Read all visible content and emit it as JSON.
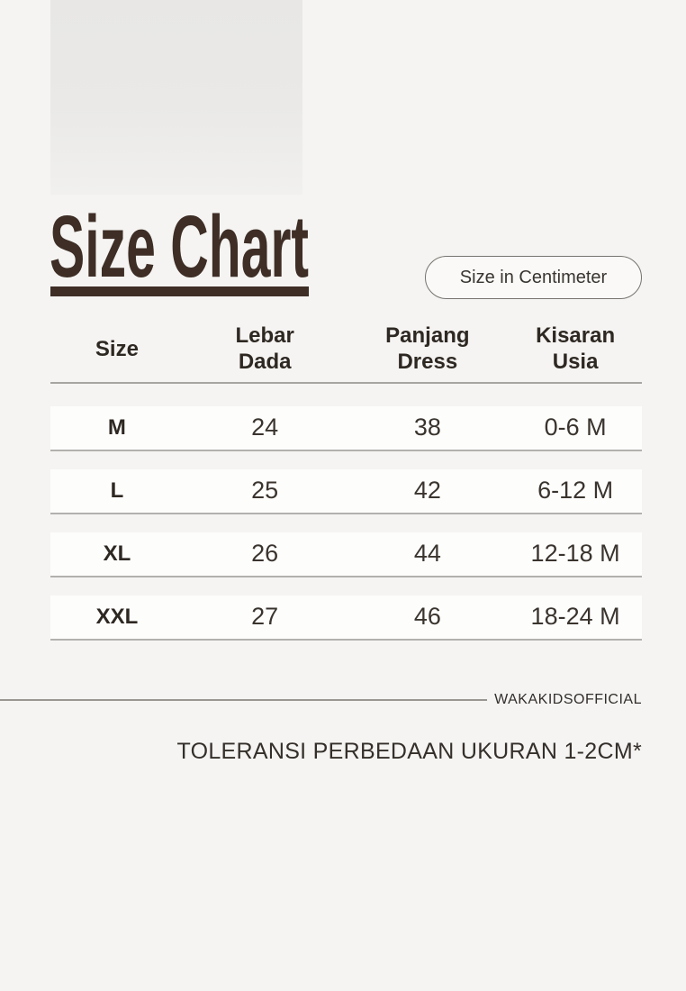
{
  "page": {
    "background_color": "#f5f4f2",
    "accent_color": "#3e2e26"
  },
  "header": {
    "title": "Size Chart",
    "unit_badge": "Size in Centimeter"
  },
  "size_table": {
    "columns": [
      {
        "label": "Size",
        "line1": "Size",
        "line2": ""
      },
      {
        "label": "Lebar Dada",
        "line1": "Lebar",
        "line2": "Dada"
      },
      {
        "label": "Panjang Dress",
        "line1": "Panjang",
        "line2": "Dress"
      },
      {
        "label": "Kisaran Usia",
        "line1": "Kisaran",
        "line2": "Usia"
      }
    ],
    "rows": [
      {
        "size": "M",
        "lebar_dada": "24",
        "panjang_dress": "38",
        "kisaran_usia": "0-6 M"
      },
      {
        "size": "L",
        "lebar_dada": "25",
        "panjang_dress": "42",
        "kisaran_usia": "6-12 M"
      },
      {
        "size": "XL",
        "lebar_dada": "26",
        "panjang_dress": "44",
        "kisaran_usia": "12-18 M"
      },
      {
        "size": "XXL",
        "lebar_dada": "27",
        "panjang_dress": "46",
        "kisaran_usia": "18-24 M"
      }
    ]
  },
  "footer": {
    "brand": "WAKAKIDSOFFICIAL",
    "note": "TOLERANSI PERBEDAAN UKURAN 1-2CM*"
  }
}
